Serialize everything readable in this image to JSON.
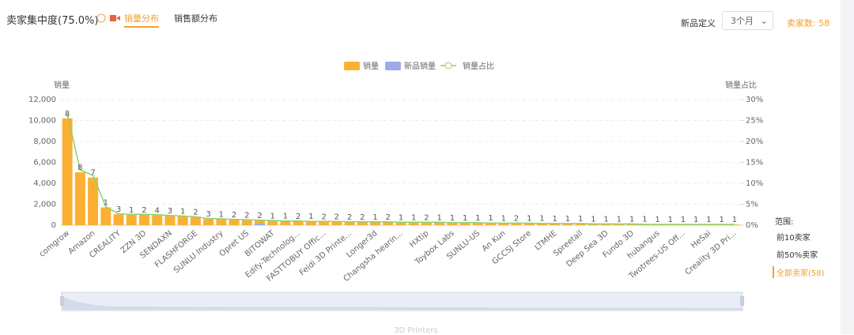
{
  "header": {
    "title": "卖家集中度(75.0%)",
    "tabs": [
      "销量分布",
      "销售额分布"
    ],
    "new_def_label": "新品定义",
    "period": "3个月",
    "seller_count": "卖家数: 58"
  },
  "range_panel": {
    "title": "范围:",
    "options": [
      "前10卖家",
      "前50%卖家",
      "全部卖家(58)"
    ]
  },
  "footer": "3D Printers",
  "chart_data": {
    "type": "bar",
    "y_label": "销量",
    "y2_label": "销量占比",
    "categories": [
      "comgrow",
      null,
      "Amazon",
      null,
      "CREALITY",
      null,
      "ZZN 3D",
      null,
      "SENDAXN",
      null,
      "FLASHFORGE",
      null,
      "SUNLU Industry",
      null,
      "Opret US",
      null,
      "BITOWAT",
      null,
      "Edify-Technolog...",
      null,
      "FASTTOBUY Offic...",
      null,
      "Feidi 3D Printe...",
      null,
      "Longer3d",
      null,
      "Changsha hearin...",
      null,
      "HXtip",
      null,
      "Toybox Labs",
      null,
      "SUNLU-US",
      null,
      "An Kun",
      null,
      "GCCSJ Store",
      null,
      "LTMHE",
      null,
      "Spreetail",
      null,
      "Deep Sea 3D",
      null,
      "Fundo 3D",
      null,
      "hubangus",
      null,
      "Twotrees-US Off...",
      null,
      "HeSai",
      null,
      "Creality 3D Pri..."
    ],
    "series": [
      {
        "name": "销量",
        "color": "#fbb034",
        "values": [
          10200,
          5050,
          4550,
          1700,
          1050,
          1000,
          980,
          950,
          900,
          850,
          780,
          600,
          560,
          520,
          480,
          450,
          420,
          400,
          380,
          360,
          340,
          330,
          320,
          310,
          300,
          290,
          280,
          270,
          260,
          250,
          240,
          230,
          220,
          210,
          200,
          190,
          180,
          170,
          160,
          150,
          140,
          130,
          120,
          110,
          100,
          95,
          90,
          85,
          80,
          75,
          70,
          65,
          60
        ]
      },
      {
        "name": "新品销量",
        "color": "#9fa9ea",
        "values": [
          0,
          0,
          0,
          0,
          0,
          0,
          0,
          0,
          0,
          0,
          0,
          0,
          0,
          0,
          0,
          150,
          0,
          0,
          0,
          0,
          0,
          0,
          0,
          0,
          0,
          0,
          0,
          0,
          0,
          0,
          0,
          0,
          0,
          0,
          0,
          0,
          0,
          0,
          0,
          0,
          0,
          0,
          0,
          0,
          0,
          0,
          0,
          0,
          0,
          0,
          0,
          0,
          0
        ]
      },
      {
        "name": "销量占比",
        "color": "#8fd16b",
        "type": "line",
        "axis": "y2",
        "values": [
          26.6,
          13.2,
          11.9,
          4.4,
          2.7,
          2.6,
          2.6,
          2.5,
          2.3,
          2.2,
          2.0,
          1.6,
          1.5,
          1.4,
          1.3,
          1.2,
          1.1,
          1.0,
          1.0,
          0.9,
          0.9,
          0.9,
          0.8,
          0.8,
          0.8,
          0.8,
          0.7,
          0.7,
          0.7,
          0.7,
          0.6,
          0.6,
          0.6,
          0.5,
          0.5,
          0.5,
          0.5,
          0.4,
          0.4,
          0.4,
          0.4,
          0.3,
          0.3,
          0.3,
          0.3,
          0.2,
          0.2,
          0.2,
          0.2,
          0.2,
          0.2,
          0.2,
          0.2
        ]
      }
    ],
    "counts": [
      8,
      8,
      7,
      1,
      3,
      1,
      2,
      4,
      3,
      1,
      2,
      3,
      1,
      2,
      2,
      2,
      1,
      1,
      2,
      1,
      2,
      2,
      2,
      2,
      1,
      2,
      1,
      1,
      2,
      1,
      1,
      1,
      1,
      1,
      1,
      2,
      1,
      1,
      1,
      1,
      1,
      1,
      1,
      1,
      1,
      1,
      1,
      1,
      1,
      1,
      1,
      1,
      1
    ],
    "ylim": [
      0,
      12000
    ],
    "yticks": [
      0,
      {
        "value": 2000,
        "label": "2,000"
      },
      {
        "value": 4000,
        "label": "4,000"
      },
      {
        "value": 6000,
        "label": "6,000"
      },
      {
        "value": 8000,
        "label": "8,000"
      },
      {
        "value": 10000,
        "label": "10,000"
      },
      {
        "value": 12000,
        "label": "12,000"
      }
    ],
    "y2lim": [
      0,
      30
    ],
    "y2ticks": [
      {
        "value": 0,
        "label": "0%"
      },
      {
        "value": 5,
        "label": "5%"
      },
      {
        "value": 10,
        "label": "10%"
      },
      {
        "value": 15,
        "label": "15%"
      },
      {
        "value": 20,
        "label": "20%"
      },
      {
        "value": 25,
        "label": "25%"
      },
      {
        "value": 30,
        "label": "30%"
      }
    ],
    "grid": true,
    "legend": "top"
  }
}
